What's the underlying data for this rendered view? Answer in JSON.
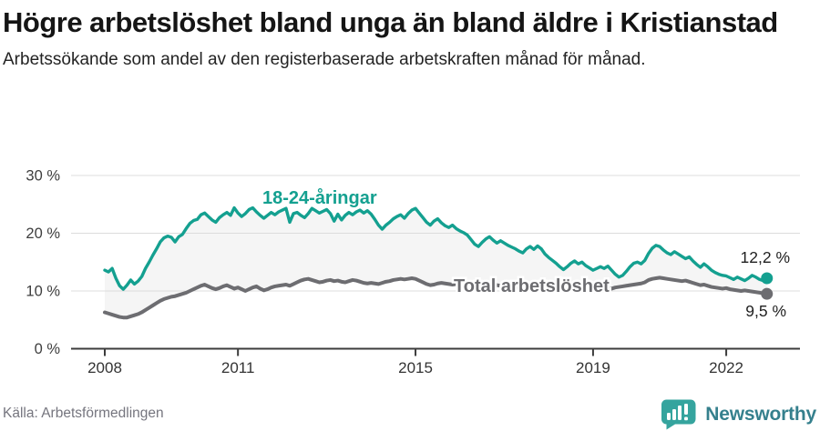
{
  "header": {
    "title": "Högre arbetslöshet bland unga än bland äldre i Kristianstad",
    "subtitle": "Arbetssökande som andel av den registerbaserade arbetskraften månad för månad."
  },
  "chart_data": {
    "type": "line",
    "title": "Högre arbetslöshet bland unga än bland äldre i Kristianstad",
    "subtitle": "Arbetssökande som andel av den registerbaserade arbetskraften månad för månad.",
    "unit": "%",
    "x_start": "2008-01",
    "x_end": "2022-12",
    "frequency": "monthly",
    "ylim": [
      0,
      30
    ],
    "grid": true,
    "legend_position": "inline-labels",
    "band_fill": "#f5f5f5",
    "yticks": [
      {
        "value": 0,
        "label": "0 %"
      },
      {
        "value": 10,
        "label": "10 %"
      },
      {
        "value": 20,
        "label": "20 %"
      },
      {
        "value": 30,
        "label": "30 %"
      }
    ],
    "xticks": [
      {
        "year": 2008,
        "label": "2008"
      },
      {
        "year": 2011,
        "label": "2011"
      },
      {
        "year": 2015,
        "label": "2015"
      },
      {
        "year": 2019,
        "label": "2019"
      },
      {
        "year": 2022,
        "label": "2022"
      }
    ],
    "series": [
      {
        "id": "youth",
        "name": "18-24-åringar",
        "color": "#14a090",
        "end_label": "12,2 %",
        "end_value": 12.2,
        "values": [
          13.6,
          13.3,
          13.9,
          12.2,
          10.9,
          10.3,
          11.0,
          11.9,
          11.2,
          11.7,
          12.5,
          13.9,
          15.0,
          16.2,
          17.3,
          18.5,
          19.2,
          19.5,
          19.3,
          18.5,
          19.4,
          19.8,
          20.8,
          21.7,
          22.2,
          22.4,
          23.2,
          23.5,
          22.9,
          22.3,
          21.9,
          22.7,
          23.2,
          23.6,
          23.1,
          24.4,
          23.5,
          22.9,
          23.4,
          24.1,
          24.4,
          23.7,
          23.1,
          22.6,
          23.1,
          23.6,
          23.2,
          23.7,
          24.0,
          24.3,
          21.9,
          23.4,
          23.6,
          23.1,
          22.7,
          23.4,
          24.3,
          23.9,
          23.5,
          23.8,
          24.1,
          23.4,
          22.1,
          23.3,
          22.3,
          23.1,
          23.6,
          23.2,
          23.7,
          24.0,
          23.5,
          23.9,
          23.3,
          22.4,
          21.4,
          20.7,
          21.4,
          21.9,
          22.5,
          22.9,
          23.2,
          22.6,
          23.4,
          24.0,
          24.3,
          23.5,
          22.7,
          21.9,
          21.4,
          22.1,
          22.5,
          21.8,
          21.3,
          21.0,
          21.4,
          20.8,
          20.4,
          20.1,
          19.7,
          18.9,
          18.1,
          17.7,
          18.4,
          19.0,
          19.4,
          18.8,
          18.3,
          18.7,
          18.3,
          17.9,
          17.6,
          17.3,
          16.9,
          16.6,
          17.3,
          17.7,
          17.2,
          17.8,
          17.3,
          16.4,
          15.8,
          15.3,
          14.8,
          14.2,
          13.7,
          14.2,
          14.8,
          15.2,
          14.7,
          15.0,
          14.4,
          14.0,
          13.6,
          13.9,
          14.2,
          13.9,
          14.3,
          13.6,
          12.9,
          12.4,
          12.7,
          13.4,
          14.2,
          14.8,
          15.0,
          14.7,
          15.3,
          16.5,
          17.4,
          17.9,
          17.7,
          17.1,
          16.6,
          16.3,
          16.8,
          16.4,
          16.0,
          15.6,
          15.9,
          15.2,
          14.6,
          14.1,
          14.7,
          14.2,
          13.6,
          13.2,
          12.9,
          12.7,
          12.6,
          12.3,
          12.0,
          12.4,
          12.1,
          11.8,
          12.2,
          12.7,
          12.4,
          12.0,
          11.8,
          12.2
        ]
      },
      {
        "id": "total",
        "name": "Total arbetslöshet",
        "color": "#6d6d71",
        "end_label": "9,5 %",
        "end_value": 9.5,
        "values": [
          6.3,
          6.1,
          5.9,
          5.7,
          5.5,
          5.4,
          5.4,
          5.6,
          5.8,
          6.0,
          6.3,
          6.7,
          7.1,
          7.5,
          7.9,
          8.3,
          8.6,
          8.8,
          9.0,
          9.1,
          9.3,
          9.5,
          9.7,
          10.0,
          10.3,
          10.6,
          10.9,
          11.1,
          10.8,
          10.5,
          10.3,
          10.5,
          10.8,
          11.0,
          10.7,
          10.4,
          10.6,
          10.3,
          10.0,
          10.3,
          10.6,
          10.8,
          10.4,
          10.1,
          10.3,
          10.6,
          10.8,
          10.9,
          11.0,
          11.1,
          10.9,
          11.2,
          11.5,
          11.8,
          12.0,
          12.1,
          11.9,
          11.7,
          11.5,
          11.6,
          11.8,
          11.9,
          11.7,
          11.8,
          11.6,
          11.5,
          11.7,
          11.9,
          11.8,
          11.6,
          11.4,
          11.3,
          11.4,
          11.3,
          11.2,
          11.4,
          11.6,
          11.7,
          11.9,
          12.0,
          12.1,
          12.0,
          12.1,
          12.2,
          12.1,
          11.8,
          11.5,
          11.2,
          11.0,
          11.1,
          11.3,
          11.4,
          11.3,
          11.2,
          11.1,
          11.2,
          11.3,
          11.2,
          11.1,
          11.0,
          10.9,
          10.8,
          11.0,
          11.1,
          11.2,
          11.1,
          11.0,
          10.9,
          10.9,
          10.8,
          10.7,
          10.6,
          10.5,
          10.4,
          10.6,
          10.7,
          10.8,
          10.7,
          10.6,
          10.5,
          10.4,
          10.3,
          10.2,
          10.1,
          10.0,
          10.1,
          10.3,
          10.4,
          10.3,
          10.2,
          10.1,
          10.0,
          10.0,
          9.9,
          10.0,
          10.1,
          10.2,
          10.4,
          10.6,
          10.7,
          10.8,
          10.9,
          11.0,
          11.1,
          11.2,
          11.3,
          11.5,
          11.9,
          12.1,
          12.2,
          12.3,
          12.2,
          12.1,
          12.0,
          11.9,
          11.8,
          11.7,
          11.8,
          11.6,
          11.4,
          11.2,
          11.0,
          11.1,
          10.9,
          10.7,
          10.6,
          10.5,
          10.4,
          10.5,
          10.3,
          10.2,
          10.1,
          10.0,
          10.1,
          10.0,
          9.9,
          9.8,
          9.7,
          9.6,
          9.5
        ]
      }
    ]
  },
  "footer": {
    "source": "Källa: Arbetsförmedlingen",
    "brand": "Newsworthy"
  },
  "colors": {
    "brand_bubble": "#35a49e",
    "brand_text": "#35808d",
    "axis": "#3c3c3c",
    "grid": "#dcdcdc"
  }
}
